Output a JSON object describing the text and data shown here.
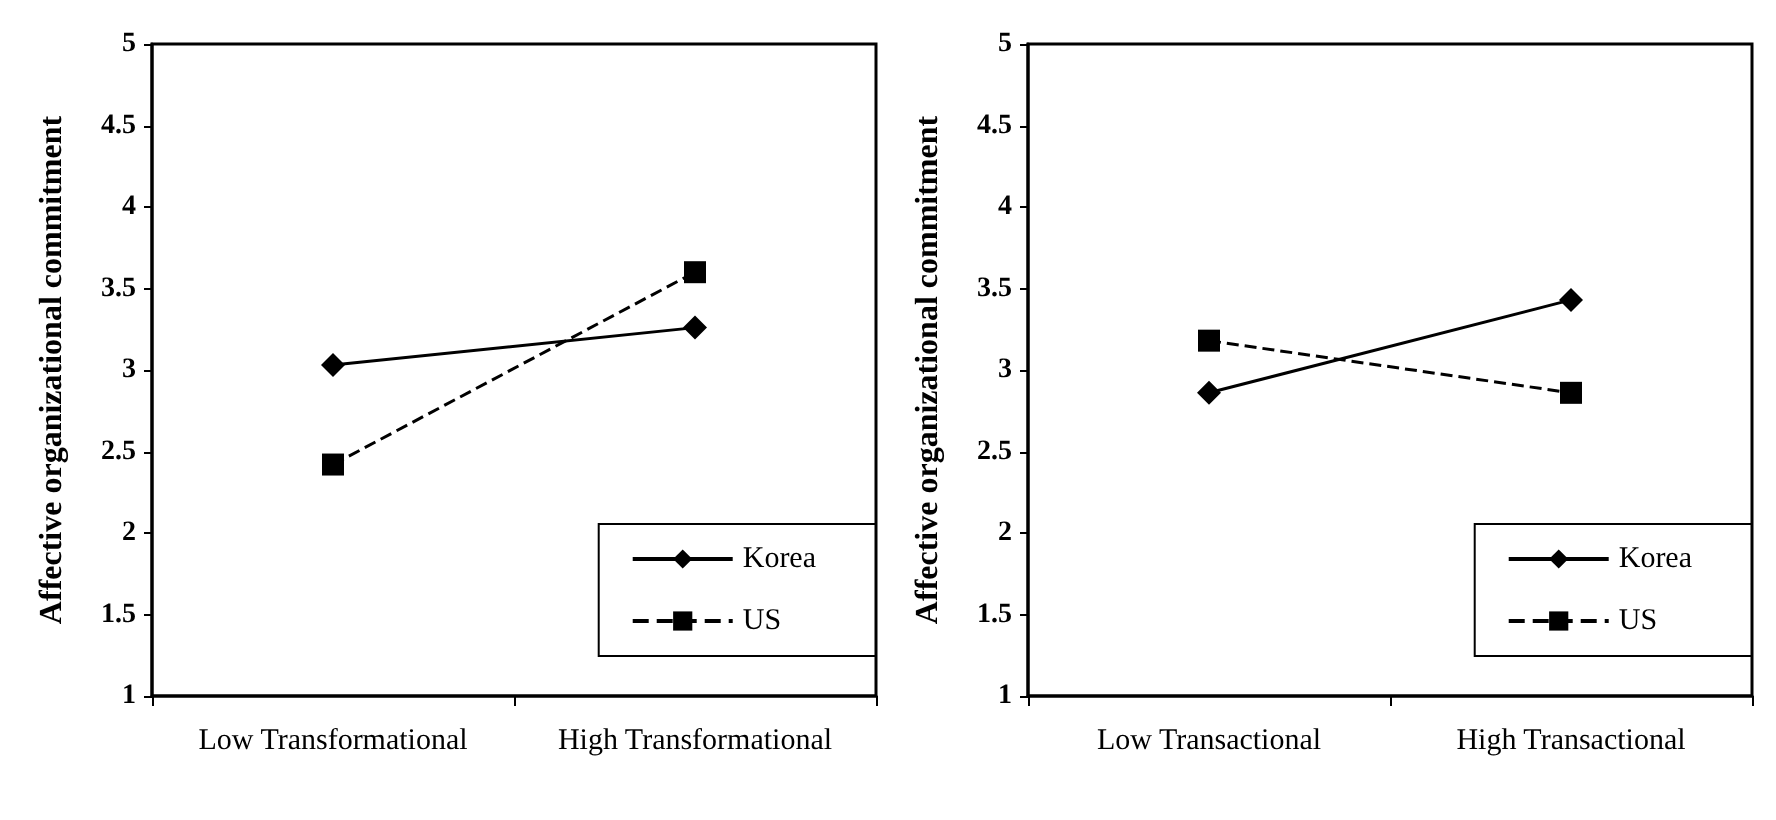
{
  "chart_data": [
    {
      "type": "line",
      "ylabel": "Affective organizational commitment",
      "categories": [
        "Low Transformational",
        "High Transformational"
      ],
      "ylim": [
        1,
        5
      ],
      "yticks": [
        1,
        1.5,
        2,
        2.5,
        3,
        3.5,
        4,
        4.5,
        5
      ],
      "grid": false,
      "legend": "bottom right",
      "series": [
        {
          "name": "Korea",
          "color": "#000000",
          "values": [
            3.03,
            3.26
          ],
          "marker": "diamond",
          "line_style": "solid"
        },
        {
          "name": "US",
          "color": "#000000",
          "values": [
            2.42,
            3.6
          ],
          "marker": "square",
          "line_style": "dashed"
        }
      ]
    },
    {
      "type": "line",
      "ylabel": "Affective organizational commitment",
      "categories": [
        "Low Transactional",
        "High Transactional"
      ],
      "ylim": [
        1,
        5
      ],
      "yticks": [
        1,
        1.5,
        2,
        2.5,
        3,
        3.5,
        4,
        4.5,
        5
      ],
      "grid": false,
      "legend": "bottom right",
      "series": [
        {
          "name": "Korea",
          "color": "#000000",
          "values": [
            2.86,
            3.43
          ],
          "marker": "diamond",
          "line_style": "solid"
        },
        {
          "name": "US",
          "color": "#000000",
          "values": [
            3.18,
            2.86
          ],
          "marker": "square",
          "line_style": "dashed"
        }
      ]
    }
  ]
}
